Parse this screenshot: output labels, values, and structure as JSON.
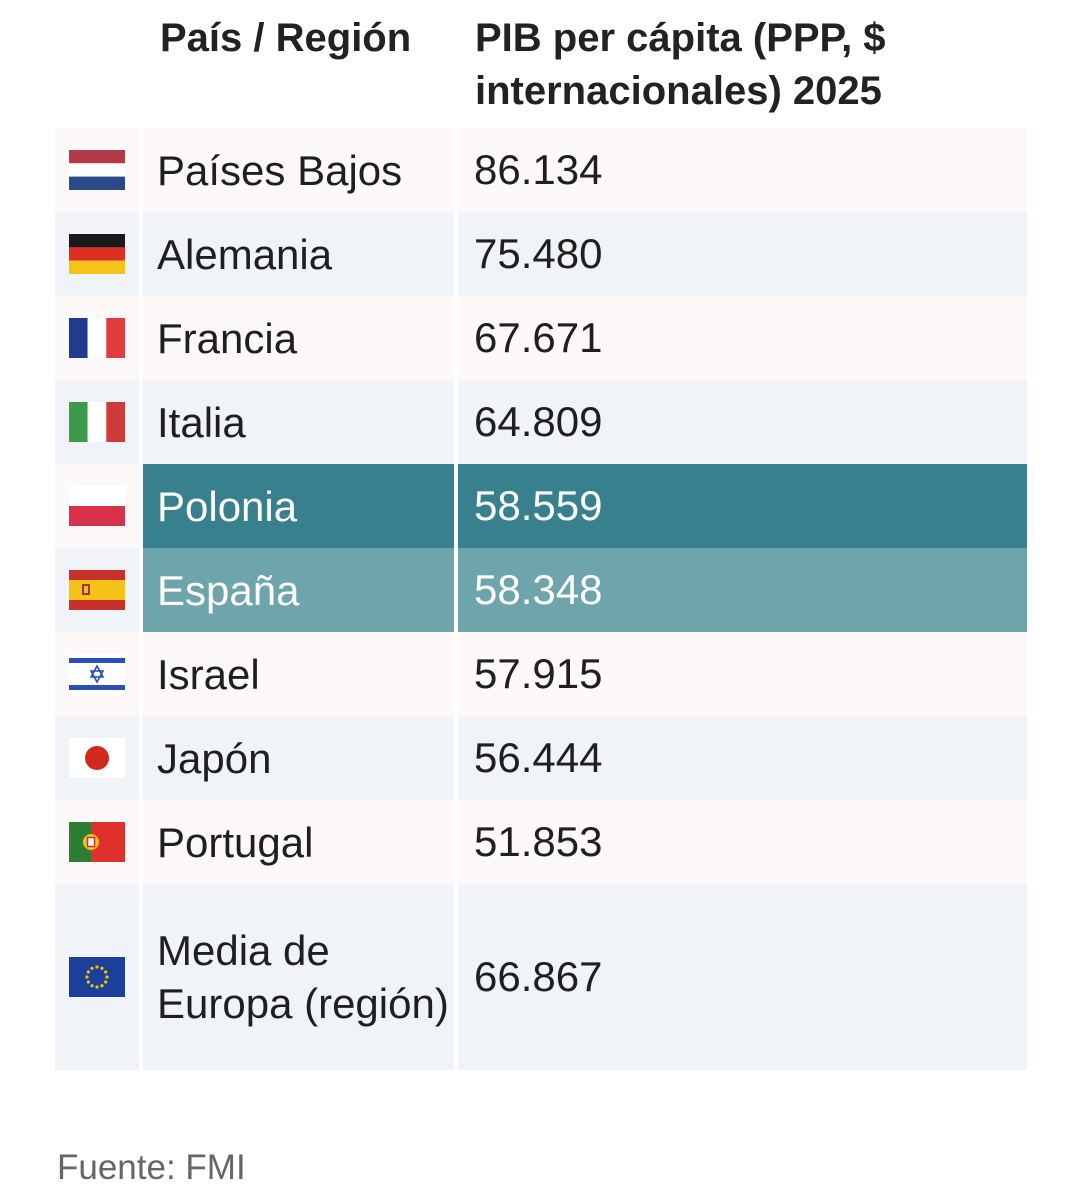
{
  "header": {
    "col1": "País / Región",
    "col2": "PIB per cápita (PPP, $ internacionales) 2025"
  },
  "rows": [
    {
      "name": "Países Bajos",
      "value": "86.134",
      "flag": "netherlands-flag-icon"
    },
    {
      "name": "Alemania",
      "value": "75.480",
      "flag": "germany-flag-icon"
    },
    {
      "name": "Francia",
      "value": "67.671",
      "flag": "france-flag-icon"
    },
    {
      "name": "Italia",
      "value": "64.809",
      "flag": "italy-flag-icon"
    },
    {
      "name": "Polonia",
      "value": "58.559",
      "flag": "poland-flag-icon"
    },
    {
      "name": "España",
      "value": "58.348",
      "flag": "spain-flag-icon"
    },
    {
      "name": "Israel",
      "value": "57.915",
      "flag": "israel-flag-icon"
    },
    {
      "name": "Japón",
      "value": "56.444",
      "flag": "japan-flag-icon"
    },
    {
      "name": "Portugal",
      "value": "51.853",
      "flag": "portugal-flag-icon"
    },
    {
      "name": "Media de Europa (región)",
      "value": "66.867",
      "flag": "eu-flag-icon"
    }
  ],
  "source": "Fuente: FMI",
  "colors": {
    "highlight_dark": "#38808d",
    "highlight_light": "#6ea4ab",
    "row_odd": "#fdf9f9",
    "row_even": "#f0f3f8"
  }
}
